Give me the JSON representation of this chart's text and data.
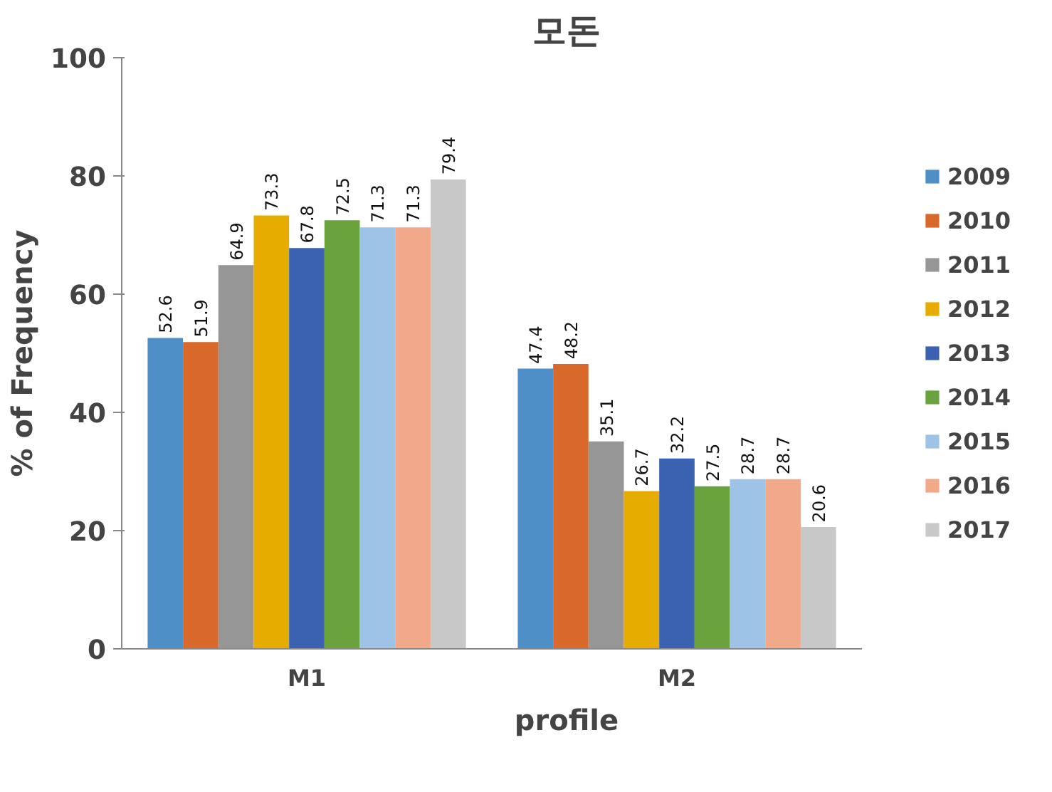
{
  "chart_data": {
    "type": "bar",
    "title": "모돈",
    "xlabel": "profile",
    "ylabel": "% of Frequency",
    "categories": [
      "M1",
      "M2"
    ],
    "series": [
      {
        "name": "2009",
        "color": "#4f8fc8",
        "values": [
          52.6,
          47.4
        ]
      },
      {
        "name": "2010",
        "color": "#d9692b",
        "values": [
          51.9,
          48.2
        ]
      },
      {
        "name": "2011",
        "color": "#969696",
        "values": [
          64.9,
          35.1
        ]
      },
      {
        "name": "2012",
        "color": "#e6ac00",
        "values": [
          73.3,
          26.7
        ]
      },
      {
        "name": "2013",
        "color": "#3a62b0",
        "values": [
          67.8,
          32.2
        ]
      },
      {
        "name": "2014",
        "color": "#6aa23e",
        "values": [
          72.5,
          27.5
        ]
      },
      {
        "name": "2015",
        "color": "#9dc3e6",
        "values": [
          71.3,
          28.7
        ]
      },
      {
        "name": "2016",
        "color": "#f2a98a",
        "values": [
          71.3,
          28.7
        ]
      },
      {
        "name": "2017",
        "color": "#c8c8c8",
        "values": [
          79.4,
          20.6
        ]
      }
    ],
    "ylim": [
      0,
      100
    ],
    "yticks": [
      0,
      20,
      40,
      60,
      80,
      100
    ],
    "grid": false,
    "legend": "right",
    "data_labels": true
  }
}
